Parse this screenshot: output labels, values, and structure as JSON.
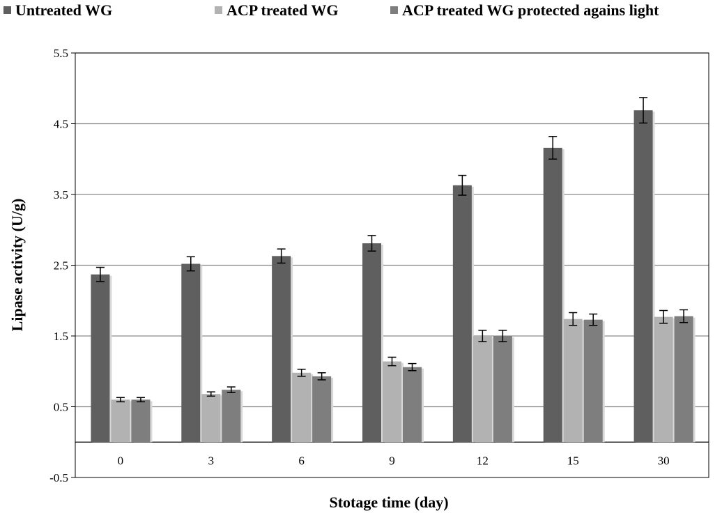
{
  "chart_data": {
    "type": "bar",
    "xlabel": "Stotage time (day)",
    "ylabel": "Lipase activity (U/g)",
    "categories": [
      "0",
      "3",
      "6",
      "9",
      "12",
      "15",
      "30"
    ],
    "ylim": [
      -0.5,
      5.5
    ],
    "yticks": [
      "-0.5",
      "0.5",
      "1.5",
      "2.5",
      "3.5",
      "4.5",
      "5.5"
    ],
    "ytick_values": [
      -0.5,
      0.5,
      1.5,
      2.5,
      3.5,
      4.5,
      5.5
    ],
    "grid": true,
    "legend_position": "top",
    "series": [
      {
        "name": "Untreated WG",
        "color": "#5f5f5f",
        "values": [
          2.37,
          2.52,
          2.63,
          2.81,
          3.63,
          4.16,
          4.69
        ],
        "errors": [
          0.1,
          0.1,
          0.1,
          0.11,
          0.14,
          0.16,
          0.18
        ]
      },
      {
        "name": "ACP treated WG",
        "color": "#b2b2b2",
        "values": [
          0.6,
          0.68,
          0.98,
          1.14,
          1.5,
          1.74,
          1.77
        ],
        "errors": [
          0.03,
          0.03,
          0.05,
          0.06,
          0.08,
          0.09,
          0.09
        ]
      },
      {
        "name": "ACP treated WG protected agains light",
        "color": "#7e7e7e",
        "values": [
          0.6,
          0.74,
          0.93,
          1.06,
          1.5,
          1.73,
          1.78
        ],
        "errors": [
          0.03,
          0.04,
          0.05,
          0.05,
          0.08,
          0.08,
          0.09
        ]
      }
    ]
  }
}
